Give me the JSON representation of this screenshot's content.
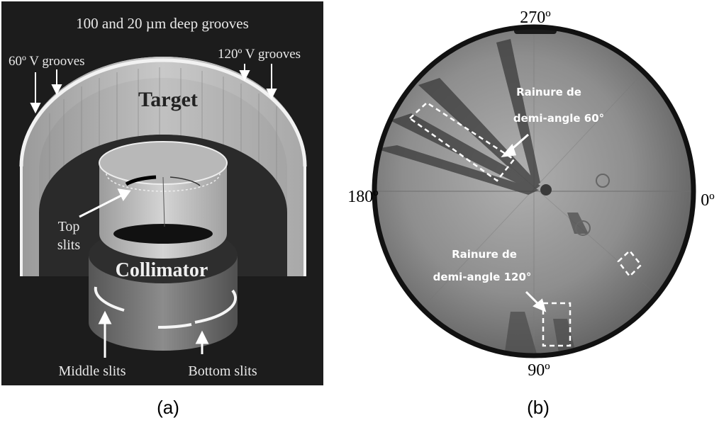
{
  "panel_a": {
    "title": "100 and 20 µm deep grooves",
    "left_groove_label": "60º V grooves",
    "right_groove_label": "120º V grooves",
    "target_label": "Target",
    "top_slits_line1": "Top",
    "top_slits_line2": "slits",
    "collimator_label": "Collimator",
    "middle_slits_label": "Middle slits",
    "bottom_slits_label": "Bottom slits",
    "caption": "(a)"
  },
  "panel_b": {
    "angle_top": "270º",
    "angle_left": "180º",
    "angle_right": "0º",
    "angle_bottom": "90º",
    "groove60_line1": "Rainure de",
    "groove60_line2": "demi-angle 60°",
    "groove120_line1": "Rainure de",
    "groove120_line2": "demi-angle 120°",
    "caption": "(b)"
  },
  "colors": {
    "panel_a_background": "#1c1c1c",
    "target_gray": "#bcbcbc",
    "disk_gray": "#8a8a8a",
    "annotation_white": "#ffffff"
  }
}
